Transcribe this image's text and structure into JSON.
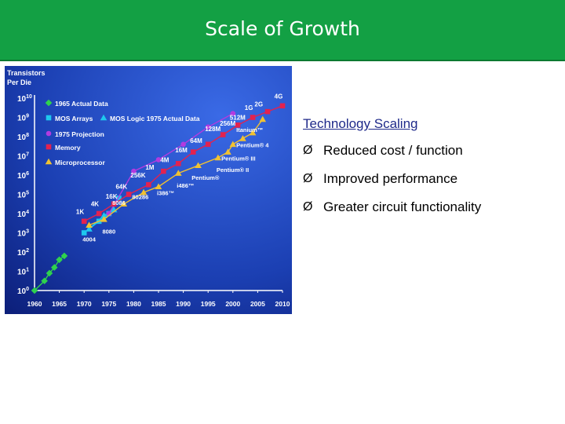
{
  "header": {
    "title": "Scale of Growth"
  },
  "colors": {
    "header": "#13a044",
    "background_blue": "#1d3fb0",
    "text_white": "#ffffff"
  },
  "chart_data": {
    "type": "line",
    "title": "",
    "ylabel": "Transistors Per Die",
    "ylabel_lines": [
      "Transistors",
      "Per Die"
    ],
    "xlabel": "",
    "x_ticks": [
      "1960",
      "1965",
      "1970",
      "1975",
      "1980",
      "1985",
      "1990",
      "1995",
      "2000",
      "2005",
      "2010"
    ],
    "y_ticks": [
      {
        "base": "10",
        "exp": "0"
      },
      {
        "base": "10",
        "exp": "1"
      },
      {
        "base": "10",
        "exp": "2"
      },
      {
        "base": "10",
        "exp": "3"
      },
      {
        "base": "10",
        "exp": "4"
      },
      {
        "base": "10",
        "exp": "5"
      },
      {
        "base": "10",
        "exp": "6"
      },
      {
        "base": "10",
        "exp": "7"
      },
      {
        "base": "10",
        "exp": "8"
      },
      {
        "base": "10",
        "exp": "9"
      },
      {
        "base": "10",
        "exp": "10"
      }
    ],
    "xlim": [
      1960,
      2010
    ],
    "ylim_log10": [
      0,
      10
    ],
    "legend_placement": "top-left",
    "series": [
      {
        "name": "1965 Actual Data",
        "color": "#2fd24d",
        "marker": "diamond",
        "points": [
          [
            1960,
            0
          ],
          [
            1962,
            0.5
          ],
          [
            1963,
            0.9
          ],
          [
            1964,
            1.2
          ],
          [
            1965,
            1.6
          ],
          [
            1966,
            1.8
          ]
        ]
      },
      {
        "name": "MOS Arrays",
        "color": "#1ec8ee",
        "marker": "square",
        "points": [
          [
            1970,
            3.0
          ],
          [
            1973,
            3.6
          ],
          [
            1975,
            4.0
          ],
          [
            1977,
            4.8
          ]
        ]
      },
      {
        "name": "MOS Logic 1975 Actual Data",
        "color": "#1ec8ee",
        "marker": "triangle",
        "points": [
          [
            1971,
            3.2
          ],
          [
            1974,
            3.9
          ],
          [
            1976,
            4.2
          ]
        ]
      },
      {
        "name": "1975 Projection",
        "color": "#b23be0",
        "marker": "circle",
        "points": [
          [
            1975,
            4.0
          ],
          [
            1980,
            6.2
          ],
          [
            1985,
            6.8
          ],
          [
            1990,
            7.6
          ],
          [
            1995,
            8.5
          ],
          [
            2000,
            9.2
          ]
        ]
      },
      {
        "name": "Memory",
        "color": "#e3224f",
        "marker": "square",
        "points": [
          [
            1970,
            3.6
          ],
          [
            1973,
            4.0
          ],
          [
            1976,
            4.5
          ],
          [
            1979,
            5.0
          ],
          [
            1983,
            5.5
          ],
          [
            1986,
            6.2
          ],
          [
            1989,
            6.6
          ],
          [
            1992,
            7.2
          ],
          [
            1995,
            7.6
          ],
          [
            1998,
            8.1
          ],
          [
            2001,
            8.6
          ],
          [
            2004,
            9.0
          ],
          [
            2007,
            9.3
          ],
          [
            2010,
            9.6
          ]
        ]
      },
      {
        "name": "Microprocessor",
        "color": "#f1c232",
        "marker": "triangle",
        "points": [
          [
            1971,
            3.4
          ],
          [
            1974,
            3.7
          ],
          [
            1978,
            4.5
          ],
          [
            1982,
            5.1
          ],
          [
            1985,
            5.4
          ],
          [
            1989,
            6.1
          ],
          [
            1993,
            6.5
          ],
          [
            1997,
            6.9
          ],
          [
            1999,
            7.2
          ],
          [
            2000,
            7.6
          ],
          [
            2002,
            7.9
          ],
          [
            2004,
            8.2
          ],
          [
            2006,
            8.9
          ]
        ]
      }
    ],
    "annotations": [
      "1K",
      "4K",
      "16K",
      "64K",
      "256K",
      "1M",
      "4M",
      "16M",
      "64M",
      "128M",
      "256M",
      "512M",
      "1G",
      "2G",
      "4G",
      "4004",
      "8080",
      "8086",
      "80286",
      "i386™",
      "i486™",
      "Pentium®",
      "Pentium® II",
      "Pentium® III",
      "Pentium® 4",
      "Itanium™"
    ]
  },
  "right": {
    "heading": "Technology Scaling",
    "bullets": [
      "Reduced cost / function",
      "Improved performance",
      "Greater circuit functionality"
    ],
    "bullet_marker": "Ø"
  }
}
